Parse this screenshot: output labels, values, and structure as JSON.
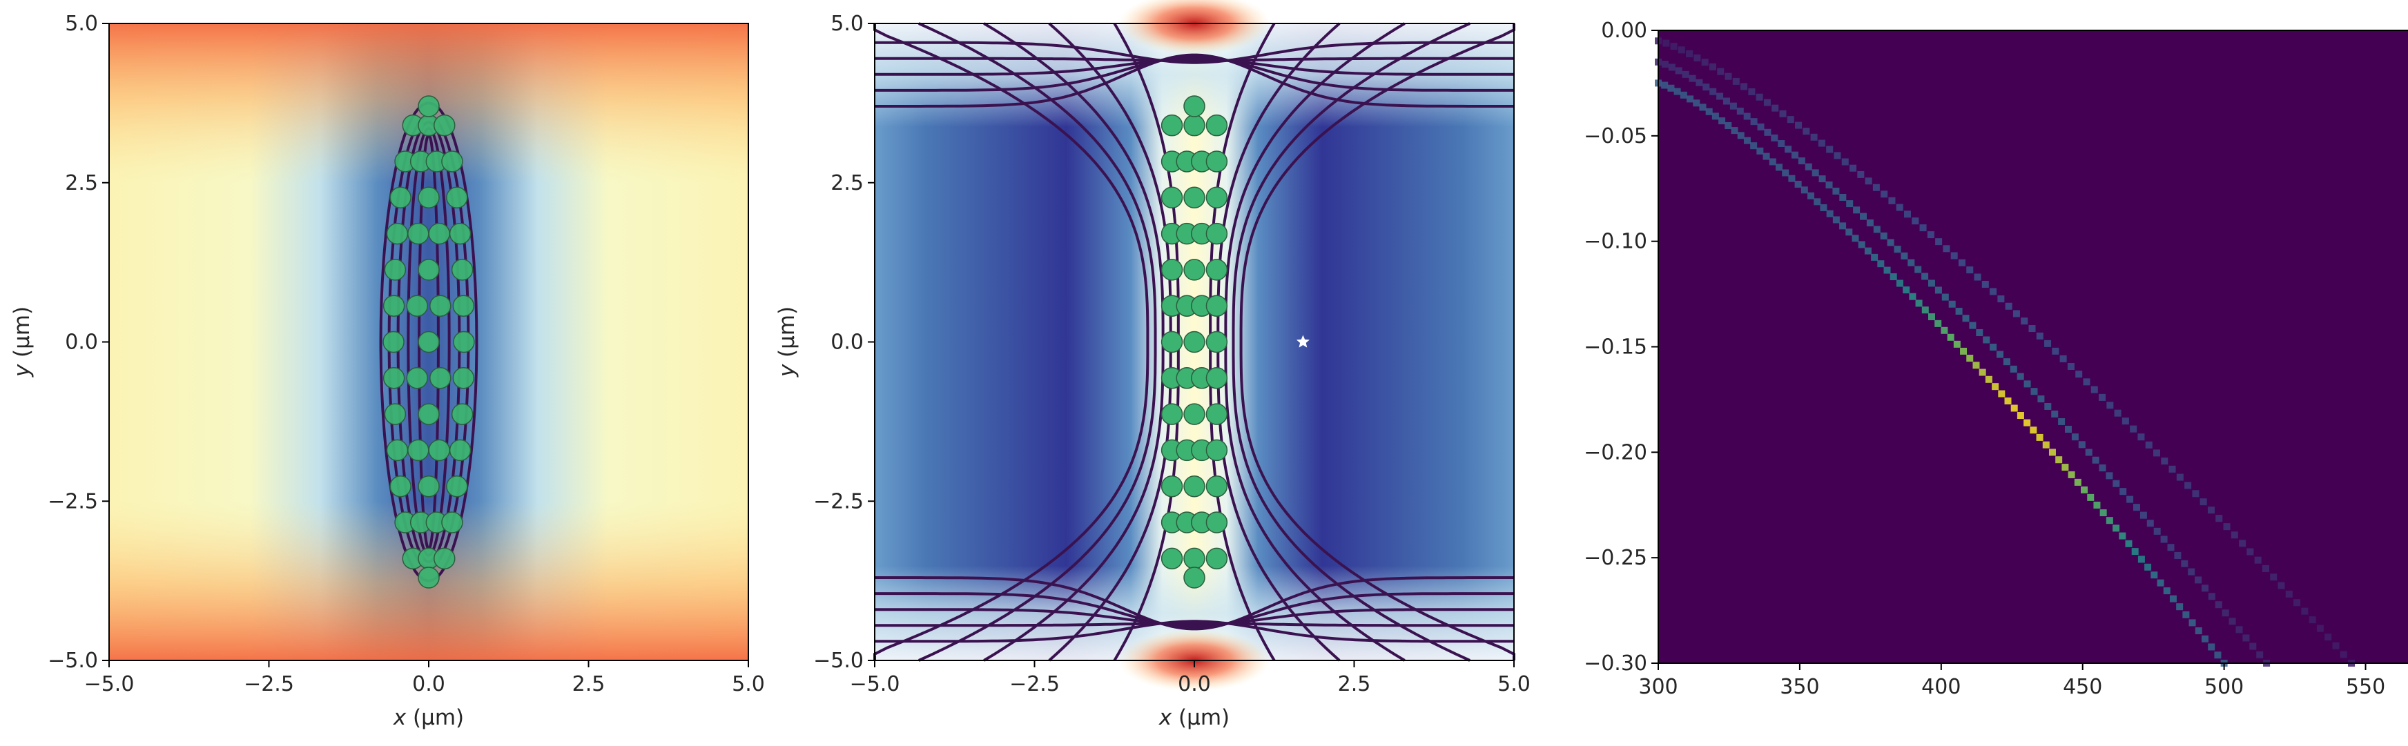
{
  "chart_data": [
    {
      "type": "heatmap",
      "panel": "left",
      "description_colormap": "RdYlBu",
      "xlabel_var": "x",
      "xlabel_unit": " (µm)",
      "ylabel_var": "y",
      "ylabel_unit": " (µm)",
      "xlim": [
        -5.0,
        5.0
      ],
      "ylim": [
        -5.0,
        5.0
      ],
      "xticks": [
        "−5.0",
        "−2.5",
        "0.0",
        "2.5",
        "5.0"
      ],
      "yticks": [
        "−5.0",
        "−2.5",
        "0.0",
        "2.5",
        "5.0"
      ],
      "contour_color": "#3b1250",
      "ion_color": "#3cb371",
      "ion_count": 54,
      "ion_extent_y": [
        -3.7,
        3.7
      ]
    },
    {
      "type": "heatmap",
      "panel": "middle",
      "description_colormap": "RdYlBu",
      "xlabel_var": "x",
      "xlabel_unit": " (µm)",
      "ylabel_var": "y",
      "ylabel_unit": " (µm)",
      "xlim": [
        -5.0,
        5.0
      ],
      "ylim": [
        -5.0,
        5.0
      ],
      "xticks": [
        "−5.0",
        "−2.5",
        "0.0",
        "2.5",
        "5.0"
      ],
      "yticks": [
        "−5.0",
        "−2.5",
        "0.0",
        "2.5",
        "5.0"
      ],
      "contour_color": "#3b1250",
      "ion_color": "#3cb371",
      "ion_count": 54,
      "marker": {
        "symbol": "star",
        "x": 1.7,
        "y": 0.0,
        "color": "#ffffff"
      }
    },
    {
      "type": "heatmap",
      "panel": "right",
      "description_colormap": "viridis",
      "xlim": [
        300,
        565
      ],
      "ylim": [
        -0.3,
        0.0
      ],
      "xticks": [
        "300",
        "350",
        "400",
        "450",
        "500",
        "550"
      ],
      "yticks": [
        "0.00",
        "−0.05",
        "−0.10",
        "−0.15",
        "−0.20",
        "−0.25",
        "−0.30"
      ],
      "background_color": "#440154",
      "bands": [
        {
          "x0": 300,
          "y0": -0.025,
          "x1": 500,
          "y1": -0.3,
          "peak_x": 428,
          "peak_y": -0.16,
          "intensity": 1.0
        },
        {
          "x0": 300,
          "y0": -0.015,
          "x1": 515,
          "y1": -0.3,
          "intensity": 0.35
        },
        {
          "x0": 300,
          "y0": -0.005,
          "x1": 545,
          "y1": -0.3,
          "intensity": 0.25
        }
      ]
    }
  ]
}
